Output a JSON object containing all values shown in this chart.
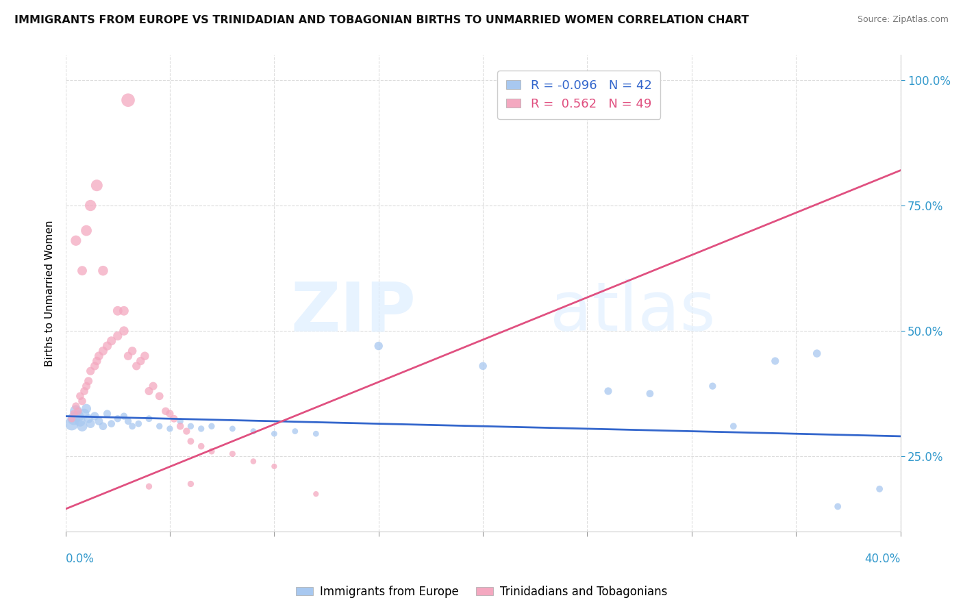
{
  "title": "IMMIGRANTS FROM EUROPE VS TRINIDADIAN AND TOBAGONIAN BIRTHS TO UNMARRIED WOMEN CORRELATION CHART",
  "source": "Source: ZipAtlas.com",
  "ylabel": "Births to Unmarried Women",
  "legend_label_blue": "Immigrants from Europe",
  "legend_label_pink": "Trinidadians and Tobagonians",
  "blue_color": "#a8c8f0",
  "pink_color": "#f4a8c0",
  "blue_line_color": "#3366cc",
  "pink_line_color": "#e05080",
  "blue_scatter": [
    [
      0.003,
      0.315
    ],
    [
      0.004,
      0.325
    ],
    [
      0.005,
      0.34
    ],
    [
      0.006,
      0.33
    ],
    [
      0.007,
      0.32
    ],
    [
      0.008,
      0.31
    ],
    [
      0.009,
      0.335
    ],
    [
      0.01,
      0.345
    ],
    [
      0.011,
      0.325
    ],
    [
      0.012,
      0.315
    ],
    [
      0.014,
      0.33
    ],
    [
      0.016,
      0.32
    ],
    [
      0.018,
      0.31
    ],
    [
      0.02,
      0.335
    ],
    [
      0.022,
      0.315
    ],
    [
      0.025,
      0.325
    ],
    [
      0.028,
      0.33
    ],
    [
      0.03,
      0.32
    ],
    [
      0.032,
      0.31
    ],
    [
      0.035,
      0.315
    ],
    [
      0.04,
      0.325
    ],
    [
      0.045,
      0.31
    ],
    [
      0.05,
      0.305
    ],
    [
      0.055,
      0.32
    ],
    [
      0.06,
      0.31
    ],
    [
      0.065,
      0.305
    ],
    [
      0.07,
      0.31
    ],
    [
      0.08,
      0.305
    ],
    [
      0.09,
      0.3
    ],
    [
      0.1,
      0.295
    ],
    [
      0.11,
      0.3
    ],
    [
      0.12,
      0.295
    ],
    [
      0.15,
      0.47
    ],
    [
      0.2,
      0.43
    ],
    [
      0.26,
      0.38
    ],
    [
      0.28,
      0.375
    ],
    [
      0.31,
      0.39
    ],
    [
      0.32,
      0.31
    ],
    [
      0.34,
      0.44
    ],
    [
      0.36,
      0.455
    ],
    [
      0.37,
      0.15
    ],
    [
      0.39,
      0.185
    ]
  ],
  "blue_sizes": [
    200,
    180,
    160,
    150,
    130,
    120,
    110,
    100,
    90,
    85,
    80,
    75,
    70,
    65,
    60,
    55,
    55,
    55,
    50,
    50,
    50,
    45,
    45,
    45,
    45,
    45,
    45,
    40,
    40,
    40,
    40,
    40,
    80,
    70,
    65,
    60,
    55,
    50,
    65,
    70,
    50,
    50
  ],
  "pink_scatter": [
    [
      0.003,
      0.325
    ],
    [
      0.004,
      0.335
    ],
    [
      0.005,
      0.35
    ],
    [
      0.006,
      0.34
    ],
    [
      0.007,
      0.37
    ],
    [
      0.008,
      0.36
    ],
    [
      0.009,
      0.38
    ],
    [
      0.01,
      0.39
    ],
    [
      0.011,
      0.4
    ],
    [
      0.012,
      0.42
    ],
    [
      0.014,
      0.43
    ],
    [
      0.015,
      0.44
    ],
    [
      0.016,
      0.45
    ],
    [
      0.018,
      0.46
    ],
    [
      0.02,
      0.47
    ],
    [
      0.022,
      0.48
    ],
    [
      0.025,
      0.49
    ],
    [
      0.028,
      0.5
    ],
    [
      0.03,
      0.45
    ],
    [
      0.032,
      0.46
    ],
    [
      0.034,
      0.43
    ],
    [
      0.036,
      0.44
    ],
    [
      0.038,
      0.45
    ],
    [
      0.04,
      0.38
    ],
    [
      0.042,
      0.39
    ],
    [
      0.045,
      0.37
    ],
    [
      0.048,
      0.34
    ],
    [
      0.05,
      0.335
    ],
    [
      0.052,
      0.325
    ],
    [
      0.055,
      0.31
    ],
    [
      0.058,
      0.3
    ],
    [
      0.06,
      0.28
    ],
    [
      0.065,
      0.27
    ],
    [
      0.07,
      0.26
    ],
    [
      0.08,
      0.255
    ],
    [
      0.09,
      0.24
    ],
    [
      0.1,
      0.23
    ],
    [
      0.005,
      0.68
    ],
    [
      0.008,
      0.62
    ],
    [
      0.01,
      0.7
    ],
    [
      0.012,
      0.75
    ],
    [
      0.015,
      0.79
    ],
    [
      0.018,
      0.62
    ],
    [
      0.025,
      0.54
    ],
    [
      0.03,
      0.96
    ],
    [
      0.028,
      0.54
    ],
    [
      0.04,
      0.19
    ],
    [
      0.06,
      0.195
    ],
    [
      0.12,
      0.175
    ]
  ],
  "pink_sizes": [
    60,
    60,
    65,
    65,
    70,
    70,
    72,
    75,
    75,
    78,
    80,
    82,
    85,
    88,
    90,
    90,
    92,
    95,
    80,
    82,
    78,
    80,
    82,
    75,
    76,
    72,
    68,
    65,
    62,
    58,
    55,
    50,
    48,
    45,
    42,
    38,
    35,
    120,
    100,
    130,
    140,
    150,
    110,
    100,
    200,
    100,
    45,
    45,
    35
  ],
  "xlim": [
    0.0,
    0.4
  ],
  "ylim": [
    0.1,
    1.05
  ],
  "blue_trend_x": [
    0.0,
    0.4
  ],
  "blue_trend_y": [
    0.33,
    0.29
  ],
  "pink_trend_x": [
    0.0,
    0.4
  ],
  "pink_trend_y": [
    0.145,
    0.82
  ]
}
